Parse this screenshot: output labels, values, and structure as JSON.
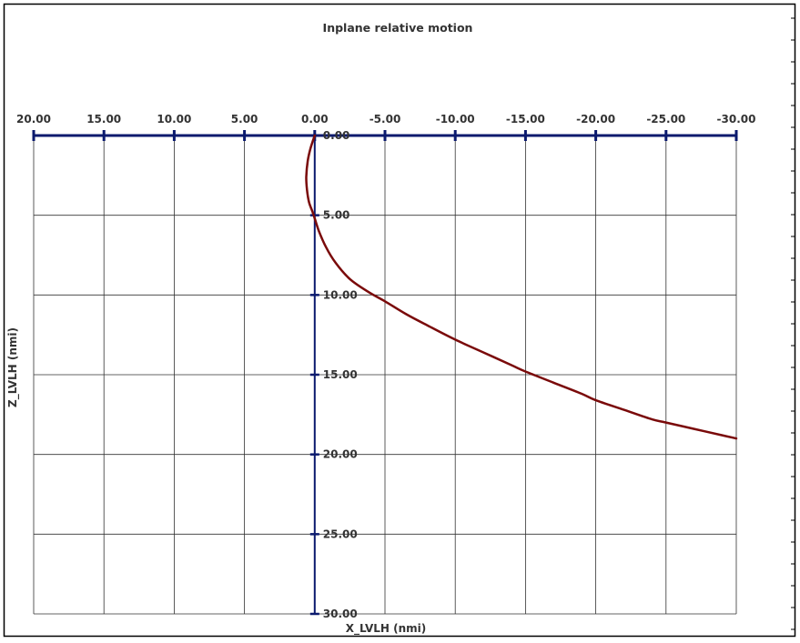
{
  "chart_data": {
    "type": "line",
    "title": "Inplane relative motion",
    "xlabel": "X_LVLH (nmi)",
    "ylabel": "Z_LVLH (nmi)",
    "xlim": [
      20,
      -30
    ],
    "ylim": [
      0,
      30
    ],
    "x_ticks": [
      20,
      15,
      10,
      5,
      0,
      -5,
      -10,
      -15,
      -20,
      -25,
      -30
    ],
    "y_ticks": [
      0,
      5,
      10,
      15,
      20,
      25,
      30
    ],
    "x_tick_labels": [
      "20.00",
      "15.00",
      "10.00",
      "5.00",
      "0.00",
      "-5.00",
      "-10.00",
      "-15.00",
      "-20.00",
      "-25.00",
      "-30.00"
    ],
    "y_tick_labels": [
      "0.00",
      "5.00",
      "10.00",
      "15.00",
      "20.00",
      "25.00",
      "30.00"
    ],
    "x_axis_position": "top",
    "y_axis_at_x": 0,
    "grid": true,
    "legend": "none",
    "series": [
      {
        "color": "#7a0a0a",
        "x": [
          0,
          0.3,
          0.5,
          0.6,
          0.55,
          0.4,
          0.15,
          0,
          -0.3,
          -0.8,
          -1.5,
          -2.5,
          -3.8,
          -5,
          -6.5,
          -8,
          -10,
          -12,
          -14,
          -15,
          -17,
          -19,
          -20,
          -22,
          -24,
          -25,
          -27,
          -29,
          -30
        ],
        "y": [
          0,
          0.8,
          1.6,
          2.6,
          3.4,
          4.2,
          4.8,
          5.2,
          6.0,
          7.0,
          8.0,
          9.0,
          9.8,
          10.4,
          11.2,
          11.9,
          12.8,
          13.6,
          14.4,
          14.8,
          15.5,
          16.2,
          16.6,
          17.2,
          17.8,
          18.0,
          18.4,
          18.8,
          19.0
        ]
      }
    ]
  }
}
